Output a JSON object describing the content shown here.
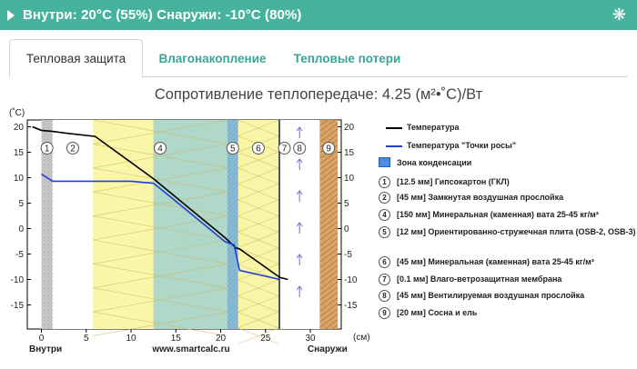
{
  "header": {
    "title": "Внутри: 20°C (55%) Снаружи: -10°C (80%)",
    "settings_icon": "gear-icon"
  },
  "tabs": [
    {
      "label": "Тепловая защита",
      "active": true
    },
    {
      "label": "Влагонакопление",
      "active": false
    },
    {
      "label": "Тепловые потери",
      "active": false
    }
  ],
  "heading": "Сопротивление теплопередаче: 4.25 (м²•˚С)/Вт",
  "chart": {
    "y_unit_left": "(˚С)",
    "x_unit": "(см)",
    "left_label": "Внутри",
    "right_label": "Снаружи",
    "watermark": "www.smartcalc.ru",
    "x_ticks": [
      "0",
      "5",
      "10",
      "15",
      "20",
      "25",
      "30"
    ],
    "y_ticks": [
      "20",
      "15",
      "10",
      "5",
      "0",
      "-5",
      "-10",
      "-15"
    ]
  },
  "chart_data": {
    "type": "line",
    "xlabel": "(см)",
    "ylabel": "(˚С)",
    "xlim": [
      -1.3,
      33.5
    ],
    "ylim": [
      -15.5,
      22.5
    ],
    "series": [
      {
        "name": "Температура",
        "color": "#000000",
        "x": [
          -1,
          0,
          1.25,
          3,
          6,
          12.5,
          20.5,
          21.7,
          22.1,
          26.6,
          27.5
        ],
        "y": [
          20,
          19.3,
          19.1,
          18.7,
          18.1,
          9.8,
          -1.8,
          -3.8,
          -4.0,
          -9.6,
          -10.0
        ]
      },
      {
        "name": "Температура \"Точки росы\"",
        "color": "#1f3fd6",
        "x": [
          0,
          1.25,
          3,
          6,
          10,
          12.5,
          14,
          20.5,
          21.5,
          22.1,
          26.6
        ],
        "y": [
          10.7,
          9.3,
          9.3,
          9.3,
          9.3,
          8.9,
          6.8,
          -2.6,
          -3.2,
          -8.2,
          -10.0
        ]
      }
    ],
    "layers": [
      {
        "num": "1",
        "from": 0,
        "to": 1.25,
        "text": "[12.5 мм] Гипсокартон (ГКЛ)"
      },
      {
        "num": "2",
        "from": 1.25,
        "to": 5.75,
        "text": "[45 мм] Замкнутая воздушная прослойка"
      },
      {
        "num": "4",
        "from": 5.75,
        "to": 20.75,
        "text": "[150 мм] Минеральная (каменная) вата 25-45 кг/м³"
      },
      {
        "num": "5",
        "from": 20.75,
        "to": 21.95,
        "text": "[12 мм] Ориентированно-стружечная плита (OSB-2, OSB-3)"
      },
      {
        "num": "6",
        "from": 21.95,
        "to": 26.45,
        "text": "[45 мм] Минеральная (каменная) вата 25-45 кг/м³"
      },
      {
        "num": "7",
        "from": 26.45,
        "to": 26.55,
        "text": "[0.1 мм] Влаго-ветрозащитная мембрана"
      },
      {
        "num": "8",
        "from": 26.55,
        "to": 31.05,
        "text": "[45 мм] Вентилируемая воздушная прослойка"
      },
      {
        "num": "9",
        "from": 31.05,
        "to": 33.05,
        "text": "[20 мм] Сосна и ель"
      }
    ],
    "condensation_zone": {
      "from": 12.5,
      "to": 21.95,
      "label": "Зона конденсации"
    }
  }
}
